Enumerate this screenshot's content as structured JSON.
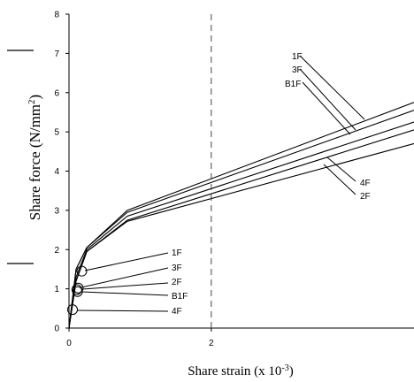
{
  "chart_data": {
    "type": "line",
    "xlabel": "Share strain (x 10",
    "xlabel_sup": "-3",
    "xlabel_end": ")",
    "ylabel": "Share force (N/mm",
    "ylabel_sup": "2",
    "ylabel_end": ")",
    "xlim": [
      0,
      4.85
    ],
    "ylim": [
      0,
      8
    ],
    "x_ticks": [
      0,
      2
    ],
    "y_ticks": [
      0,
      1,
      2,
      3,
      4,
      5,
      6,
      7,
      8
    ],
    "grid": false,
    "reference_line": {
      "x": 2,
      "style": "dashed"
    },
    "series": [
      {
        "name": "1F",
        "x": [
          0,
          0.1,
          0.25,
          0.82,
          4.85
        ],
        "y": [
          0,
          1.5,
          2.05,
          3.0,
          5.75
        ]
      },
      {
        "name": "3F",
        "x": [
          0,
          0.1,
          0.25,
          0.82,
          4.85
        ],
        "y": [
          0,
          1.5,
          2.05,
          2.95,
          5.55
        ]
      },
      {
        "name": "B1F",
        "x": [
          0,
          0.1,
          0.25,
          0.82,
          4.85
        ],
        "y": [
          0,
          1.3,
          2.0,
          2.85,
          5.25
        ]
      },
      {
        "name": "4F",
        "x": [
          0,
          0.1,
          0.25,
          0.82,
          4.85
        ],
        "y": [
          0,
          1.2,
          1.95,
          2.75,
          5.05
        ]
      },
      {
        "name": "2F",
        "x": [
          0,
          0.1,
          0.25,
          0.82,
          4.85
        ],
        "y": [
          0,
          1.2,
          1.95,
          2.72,
          4.7
        ]
      }
    ],
    "yield_points": [
      {
        "name": "1F",
        "x": 0.18,
        "y": 1.45
      },
      {
        "name": "3F",
        "x": 0.13,
        "y": 1.02
      },
      {
        "name": "2F",
        "x": 0.11,
        "y": 0.98
      },
      {
        "name": "B1F",
        "x": 0.12,
        "y": 0.93
      },
      {
        "name": "4F",
        "x": 0.05,
        "y": 0.47
      }
    ],
    "upper_labels": [
      "1F",
      "3F",
      "B1F",
      "4F",
      "2F"
    ],
    "lower_labels": [
      "1F",
      "3F",
      "2F",
      "B1F",
      "4F"
    ]
  }
}
